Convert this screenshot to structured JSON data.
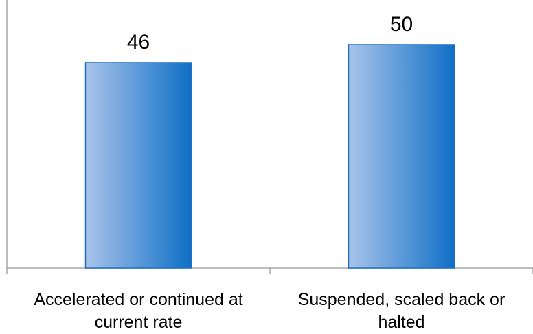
{
  "chart_data": {
    "type": "bar",
    "categories": [
      [
        "Accelerated or continued at",
        "current rate"
      ],
      [
        "Suspended, scaled back or",
        "halted"
      ]
    ],
    "values": [
      46,
      50
    ],
    "data_labels": [
      "46",
      "50"
    ],
    "title": "",
    "xlabel": "",
    "ylabel": "",
    "ylim": [
      0,
      60
    ],
    "grid": false,
    "legend": "none",
    "colors": {
      "bar_light": "#a9c4ea",
      "bar_dark": "#0f6fc6",
      "bar_edge": "#1f6fbf",
      "axis": "#a6a6a6"
    }
  }
}
